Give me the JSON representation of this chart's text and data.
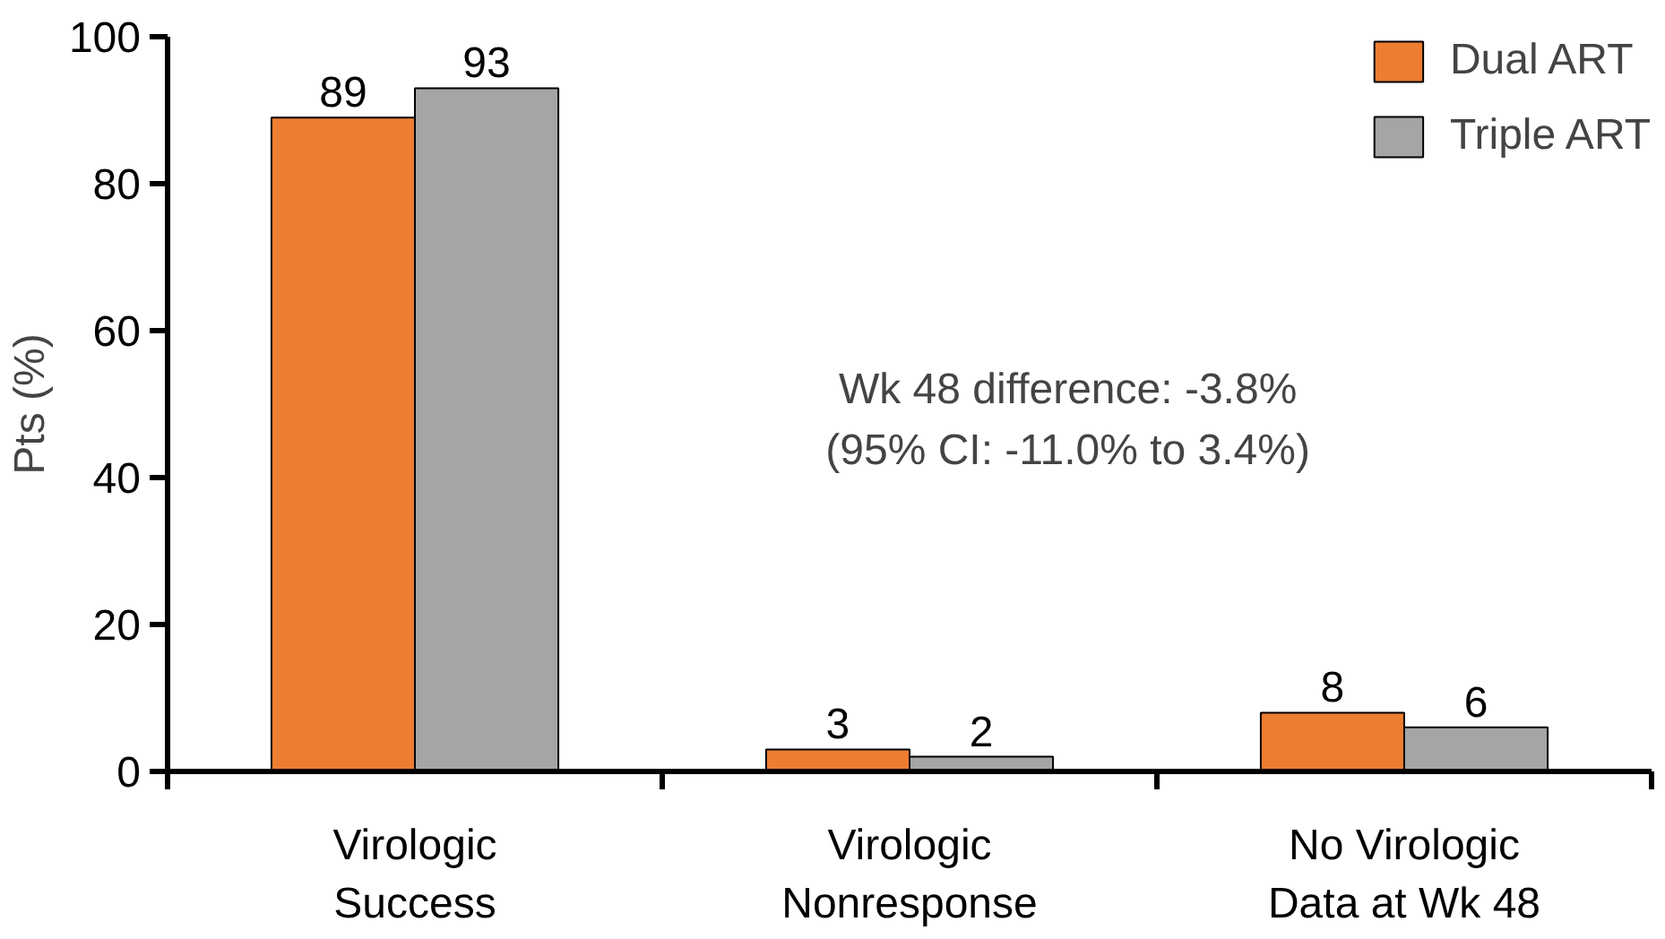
{
  "chart_data": {
    "type": "bar",
    "ylabel": "Pts (%)",
    "categories": [
      "Virologic Success",
      "Virologic Nonresponse",
      "No Virologic Data at Wk 48"
    ],
    "series": [
      {
        "name": "Dual ART",
        "color": "#ed7d31",
        "values": [
          89,
          3,
          8
        ]
      },
      {
        "name": "Triple ART",
        "color": "#a5a5a5",
        "values": [
          93,
          2,
          6
        ]
      }
    ],
    "ylim": [
      0,
      100
    ],
    "yticks": [
      0,
      20,
      40,
      60,
      80,
      100
    ],
    "grid": false,
    "legend": "top right",
    "data_labels": true,
    "annotations": [
      "Wk 48 difference: -3.8%",
      "(95% CI: -11.0% to 3.4%)"
    ]
  }
}
